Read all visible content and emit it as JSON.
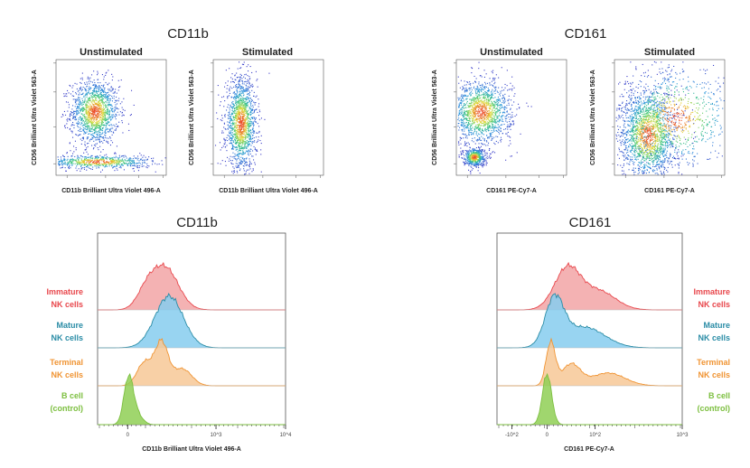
{
  "colors": {
    "immature": "#e8474c",
    "mature": "#2a8ca6",
    "terminal": "#f09433",
    "bcell": "#7cbf3f",
    "immature_fill": "#f2a4a6",
    "mature_fill": "#86cdef",
    "terminal_fill": "#f7c896",
    "bcell_fill": "#8fcf55"
  },
  "chart_data": [
    {
      "id": "cd11b_scatter",
      "type": "scatter",
      "title": "CD11b",
      "panels": [
        {
          "subtitle": "Unstimulated",
          "xlabel": "CD11b Brilliant Ultra Violet 496-A",
          "ylabel": "CD56 Brilliant Ultra Violet 563-A",
          "clusters": [
            {
              "x": 0.35,
              "y": 0.55,
              "sx": 0.11,
              "sy": 0.14,
              "n": 1400
            },
            {
              "x": 0.38,
              "y": 0.12,
              "sx": 0.25,
              "sy": 0.03,
              "n": 700
            }
          ]
        },
        {
          "subtitle": "Stimulated",
          "xlabel": "CD11b Brilliant Ultra Violet 496-A",
          "ylabel": "CD56 Brilliant Ultra Violet 563-A",
          "clusters": [
            {
              "x": 0.25,
              "y": 0.45,
              "sx": 0.07,
              "sy": 0.2,
              "n": 1500
            }
          ]
        }
      ]
    },
    {
      "id": "cd161_scatter",
      "type": "scatter",
      "title": "CD161",
      "panels": [
        {
          "subtitle": "Unstimulated",
          "xlabel": "CD161 PE-Cy7-A",
          "ylabel": "CD56 Brilliant Ultra Violet 563-A",
          "clusters": [
            {
              "x": 0.22,
              "y": 0.55,
              "sx": 0.14,
              "sy": 0.14,
              "n": 1500
            },
            {
              "x": 0.16,
              "y": 0.16,
              "sx": 0.05,
              "sy": 0.04,
              "n": 500
            }
          ]
        },
        {
          "subtitle": "Stimulated",
          "xlabel": "CD161 PE-Cy7-A",
          "ylabel": "CD56 Brilliant Ultra Violet 563-A",
          "clusters": [
            {
              "x": 0.3,
              "y": 0.35,
              "sx": 0.13,
              "sy": 0.2,
              "n": 1700
            },
            {
              "x": 0.55,
              "y": 0.5,
              "sx": 0.28,
              "sy": 0.22,
              "n": 900
            }
          ]
        }
      ]
    },
    {
      "id": "cd11b_histogram",
      "type": "area",
      "title": "CD11b",
      "xlabel": "CD11b Brilliant Ultra Violet 496-A",
      "xticks": [
        {
          "label": "0",
          "pos": 0.16
        },
        {
          "label": "10^3",
          "pos": 0.63
        },
        {
          "label": "10^4",
          "pos": 1.0
        }
      ],
      "series": [
        {
          "name_line1": "Immature",
          "name_line2": "NK cells",
          "color_key": "immature",
          "peaks": [
            {
              "mu": 0.36,
              "s": 0.07,
              "a": 1.0
            },
            {
              "mu": 0.26,
              "s": 0.05,
              "a": 0.4
            }
          ]
        },
        {
          "name_line1": "Mature",
          "name_line2": "NK cells",
          "color_key": "mature",
          "peaks": [
            {
              "mu": 0.38,
              "s": 0.075,
              "a": 1.0
            }
          ]
        },
        {
          "name_line1": "Terminal",
          "name_line2": "NK cells",
          "color_key": "terminal",
          "peaks": [
            {
              "mu": 0.34,
              "s": 0.035,
              "a": 1.0
            },
            {
              "mu": 0.25,
              "s": 0.04,
              "a": 0.55
            },
            {
              "mu": 0.45,
              "s": 0.05,
              "a": 0.4
            }
          ]
        },
        {
          "name_line1": "B cell",
          "name_line2": "(control)",
          "color_key": "bcell",
          "peaks": [
            {
              "mu": 0.165,
              "s": 0.025,
              "a": 1.0
            },
            {
              "mu": 0.21,
              "s": 0.03,
              "a": 0.2
            }
          ]
        }
      ]
    },
    {
      "id": "cd161_histogram",
      "type": "area",
      "title": "CD161",
      "xlabel": "CD161 PE-Cy7-A",
      "xticks": [
        {
          "label": "-10^2",
          "pos": 0.08
        },
        {
          "label": "0",
          "pos": 0.27
        },
        {
          "label": "10^2",
          "pos": 0.53
        },
        {
          "label": "10^3",
          "pos": 1.0
        }
      ],
      "series": [
        {
          "name_line1": "Immature",
          "name_line2": "NK cells",
          "color_key": "immature",
          "peaks": [
            {
              "mu": 0.38,
              "s": 0.07,
              "a": 1.0
            },
            {
              "mu": 0.55,
              "s": 0.09,
              "a": 0.45
            }
          ]
        },
        {
          "name_line1": "Mature",
          "name_line2": "NK cells",
          "color_key": "mature",
          "peaks": [
            {
              "mu": 0.31,
              "s": 0.05,
              "a": 1.0
            },
            {
              "mu": 0.47,
              "s": 0.11,
              "a": 0.45
            }
          ]
        },
        {
          "name_line1": "Terminal",
          "name_line2": "NK cells",
          "color_key": "terminal",
          "peaks": [
            {
              "mu": 0.29,
              "s": 0.025,
              "a": 1.0
            },
            {
              "mu": 0.4,
              "s": 0.05,
              "a": 0.5
            },
            {
              "mu": 0.6,
              "s": 0.09,
              "a": 0.3
            }
          ]
        },
        {
          "name_line1": "B cell",
          "name_line2": "(control)",
          "color_key": "bcell",
          "peaks": [
            {
              "mu": 0.27,
              "s": 0.025,
              "a": 1.0
            }
          ]
        }
      ]
    }
  ]
}
